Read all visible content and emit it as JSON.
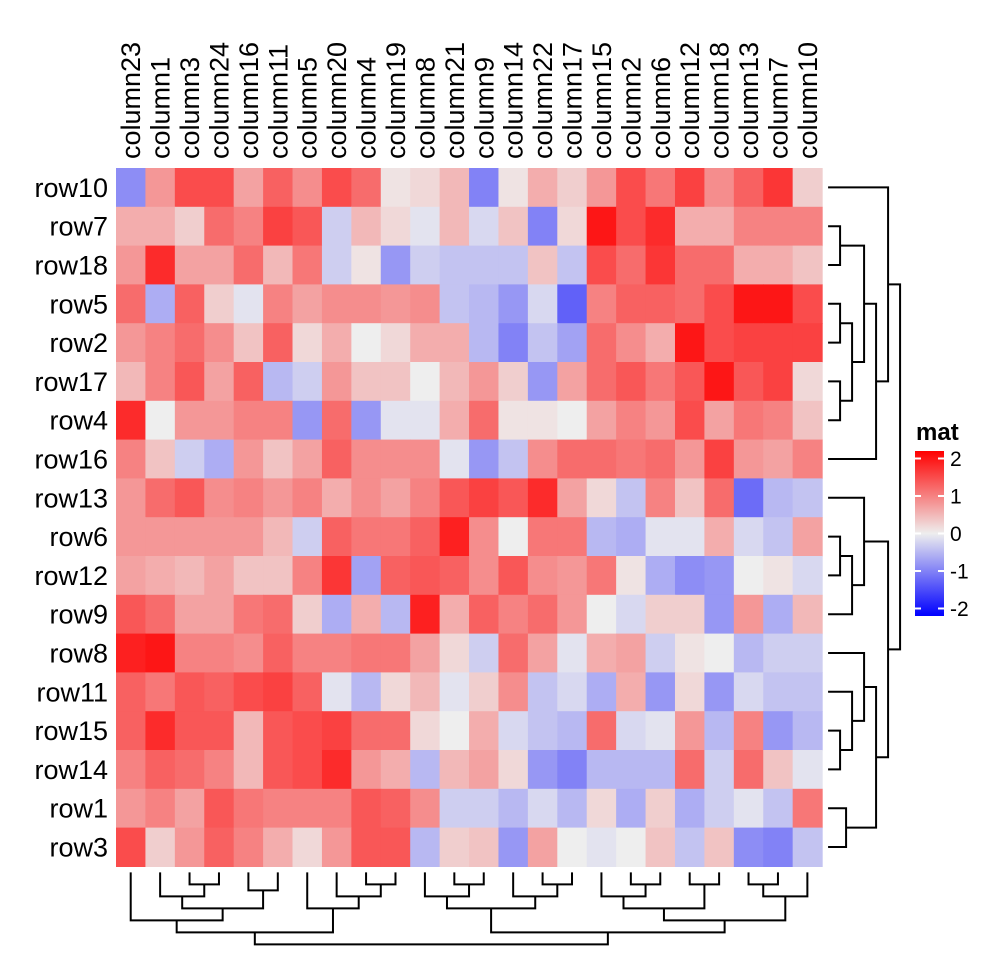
{
  "chart_data": {
    "type": "heatmap",
    "title": "",
    "columns": [
      "column23",
      "column1",
      "column3",
      "column24",
      "column16",
      "column11",
      "column5",
      "column20",
      "column4",
      "column19",
      "column8",
      "column21",
      "column9",
      "column14",
      "column22",
      "column17",
      "column15",
      "column2",
      "column6",
      "column12",
      "column18",
      "column13",
      "column7",
      "column10"
    ],
    "rows": [
      "row10",
      "row7",
      "row18",
      "row5",
      "row2",
      "row17",
      "row4",
      "row16",
      "row13",
      "row6",
      "row12",
      "row9",
      "row8",
      "row11",
      "row15",
      "row14",
      "row1",
      "row3"
    ],
    "values": [
      [
        -0.9,
        0.8,
        1.5,
        1.5,
        0.7,
        1.3,
        0.9,
        1.5,
        1.2,
        0.1,
        0.2,
        0.5,
        -1.0,
        0.1,
        0.6,
        0.3,
        0.8,
        1.5,
        1.1,
        1.6,
        0.9,
        1.3,
        1.7,
        0.3
      ],
      [
        0.6,
        0.6,
        0.3,
        1.2,
        1.0,
        1.6,
        1.4,
        -0.3,
        0.5,
        0.2,
        -0.1,
        0.5,
        -0.2,
        0.4,
        -1.0,
        0.2,
        2.0,
        1.5,
        1.8,
        0.6,
        0.6,
        1.0,
        1.0,
        1.0
      ],
      [
        0.8,
        1.8,
        0.7,
        0.7,
        1.2,
        0.5,
        1.1,
        -0.3,
        0.1,
        -0.8,
        -0.3,
        -0.4,
        -0.4,
        -0.4,
        0.4,
        -0.4,
        1.5,
        1.2,
        1.7,
        1.2,
        1.2,
        0.6,
        0.6,
        0.4
      ],
      [
        1.2,
        -0.6,
        1.3,
        0.3,
        -0.1,
        1.0,
        0.7,
        0.9,
        0.9,
        0.8,
        0.9,
        -0.4,
        -0.5,
        -0.8,
        -0.2,
        -1.3,
        1.0,
        1.3,
        1.3,
        1.2,
        1.5,
        2.0,
        2.0,
        1.5
      ],
      [
        0.8,
        1.0,
        1.2,
        0.9,
        0.4,
        1.3,
        0.2,
        0.6,
        0.0,
        0.2,
        0.6,
        0.6,
        -0.5,
        -1.0,
        -0.4,
        -0.7,
        1.2,
        0.9,
        0.6,
        2.0,
        1.5,
        1.6,
        1.6,
        1.6
      ],
      [
        0.5,
        1.0,
        1.4,
        0.7,
        1.3,
        -0.5,
        -0.3,
        0.8,
        0.4,
        0.4,
        0.0,
        0.5,
        0.8,
        0.3,
        -0.8,
        0.7,
        1.2,
        1.4,
        1.1,
        1.4,
        2.0,
        1.4,
        1.6,
        0.2
      ],
      [
        1.8,
        0.0,
        0.8,
        0.8,
        1.0,
        1.0,
        -0.8,
        1.2,
        -0.8,
        -0.1,
        -0.1,
        0.6,
        1.2,
        0.1,
        0.1,
        0.0,
        0.7,
        1.0,
        0.8,
        1.5,
        0.7,
        1.1,
        1.0,
        0.4
      ],
      [
        1.0,
        0.4,
        -0.3,
        -0.6,
        0.8,
        0.4,
        0.7,
        1.3,
        0.9,
        0.9,
        0.9,
        -0.1,
        -0.8,
        -0.4,
        0.9,
        1.2,
        1.2,
        1.1,
        1.2,
        0.8,
        1.6,
        0.8,
        0.7,
        1.0
      ],
      [
        0.8,
        1.2,
        1.4,
        0.9,
        1.0,
        0.8,
        1.0,
        0.6,
        0.9,
        0.7,
        1.0,
        1.4,
        1.6,
        1.4,
        1.8,
        0.7,
        0.2,
        -0.4,
        1.0,
        0.4,
        1.2,
        -1.2,
        -0.5,
        -0.4
      ],
      [
        0.8,
        0.8,
        0.8,
        0.8,
        0.8,
        0.5,
        -0.3,
        1.3,
        1.1,
        1.1,
        1.3,
        1.9,
        0.9,
        0.0,
        1.1,
        1.1,
        -0.5,
        -0.6,
        -0.1,
        -0.1,
        0.6,
        -0.2,
        -0.4,
        0.7
      ],
      [
        0.7,
        0.6,
        0.5,
        0.7,
        0.4,
        0.4,
        1.0,
        1.7,
        -0.7,
        1.3,
        1.4,
        1.3,
        0.9,
        1.4,
        0.9,
        0.8,
        1.1,
        0.1,
        -0.6,
        -0.9,
        -0.8,
        0.0,
        0.1,
        -0.2
      ],
      [
        1.4,
        1.2,
        0.7,
        0.7,
        1.1,
        1.2,
        0.3,
        -0.6,
        0.6,
        -0.5,
        1.9,
        0.6,
        1.3,
        1.0,
        1.2,
        0.8,
        0.0,
        -0.2,
        0.3,
        0.3,
        -0.8,
        0.8,
        -0.6,
        0.5
      ],
      [
        1.9,
        2.0,
        1.0,
        1.0,
        0.9,
        1.3,
        1.0,
        1.0,
        1.1,
        1.1,
        0.7,
        0.2,
        -0.3,
        1.2,
        0.7,
        -0.1,
        0.6,
        0.7,
        -0.3,
        0.1,
        0.0,
        -0.5,
        -0.3,
        -0.3
      ],
      [
        1.3,
        1.1,
        1.4,
        1.3,
        1.5,
        1.6,
        1.3,
        -0.1,
        -0.5,
        0.2,
        0.5,
        -0.1,
        0.3,
        0.9,
        -0.4,
        -0.2,
        -0.6,
        0.6,
        -0.8,
        0.2,
        -0.8,
        -0.2,
        -0.4,
        -0.4
      ],
      [
        1.3,
        1.8,
        1.4,
        1.4,
        0.5,
        1.4,
        1.5,
        1.6,
        1.2,
        1.2,
        0.2,
        -0.0,
        0.6,
        -0.2,
        -0.4,
        -0.5,
        1.2,
        -0.2,
        -0.1,
        0.8,
        -0.5,
        1.0,
        -0.8,
        -0.5
      ],
      [
        1.0,
        1.3,
        1.2,
        1.0,
        0.5,
        1.4,
        1.5,
        1.8,
        0.8,
        0.6,
        -0.5,
        0.5,
        0.7,
        0.2,
        -0.8,
        -1.0,
        -0.5,
        -0.5,
        -0.5,
        1.2,
        -0.3,
        1.2,
        0.4,
        -0.1
      ],
      [
        0.8,
        1.0,
        0.7,
        1.4,
        1.1,
        1.0,
        1.0,
        1.0,
        1.4,
        1.3,
        0.9,
        -0.3,
        -0.3,
        -0.5,
        -0.2,
        -0.5,
        0.2,
        -0.6,
        0.3,
        -0.6,
        -0.3,
        -0.1,
        -0.4,
        1.1
      ],
      [
        1.5,
        0.3,
        0.8,
        1.3,
        1.0,
        0.6,
        0.2,
        0.8,
        1.4,
        1.4,
        -0.5,
        0.3,
        0.4,
        -0.8,
        0.7,
        -0.0,
        -0.1,
        0.0,
        0.4,
        -0.4,
        0.4,
        -0.9,
        -1.0,
        -0.4
      ]
    ],
    "legend": {
      "title": "mat",
      "ticks": [
        2,
        1,
        0,
        -1,
        -2
      ],
      "tick_labels": [
        "2",
        "1",
        "0",
        "-1",
        "-2"
      ],
      "range": [
        -2.2,
        2.2
      ],
      "colors": {
        "low": "#0000ff",
        "mid": "#eeeeee",
        "high": "#ff0000"
      },
      "placement": "right"
    },
    "row_dendrogram": true,
    "column_dendrogram": true
  }
}
